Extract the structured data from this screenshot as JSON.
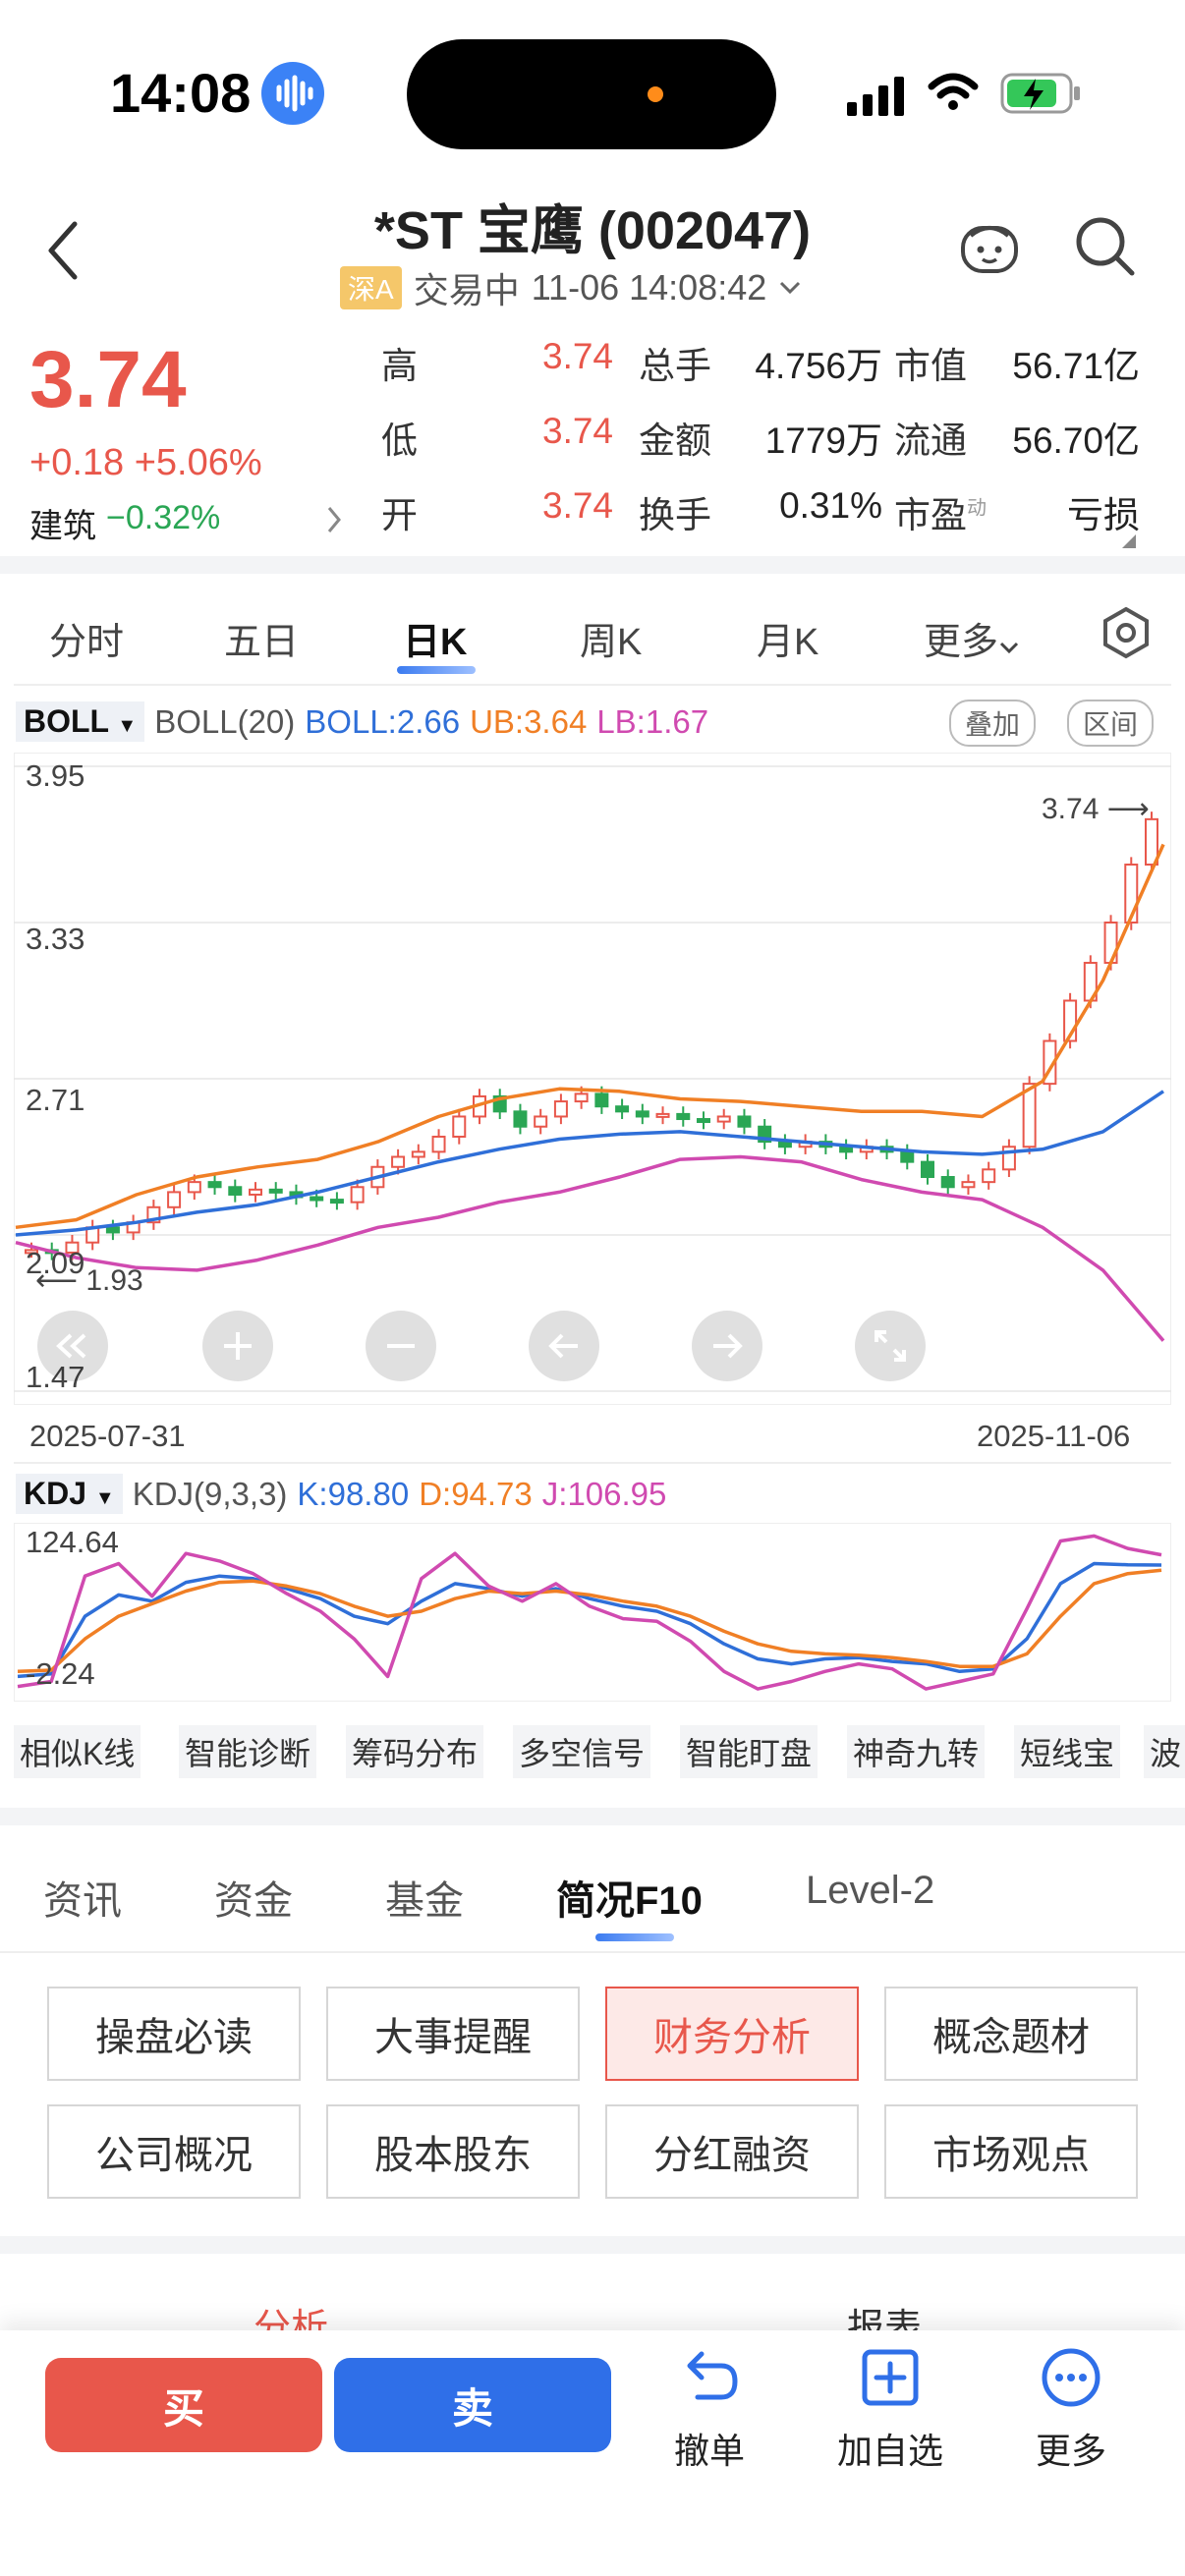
{
  "status_bar": {
    "time": "14:08"
  },
  "header": {
    "title": "*ST 宝鹰 (002047)",
    "market_badge": "深A",
    "trading_status": "交易中",
    "datetime": "11-06 14:08:42"
  },
  "quote": {
    "price": "3.74",
    "change": "+0.18 +5.06%",
    "sector_name": "建筑",
    "sector_change": "−0.32%",
    "rows": [
      {
        "l1": "高",
        "v1": "3.74",
        "l2": "总手",
        "v2": "4.756万",
        "l3": "市值",
        "v3": "56.71亿"
      },
      {
        "l1": "低",
        "v1": "3.74",
        "l2": "金额",
        "v2": "1779万",
        "l3": "流通",
        "v3": "56.70亿"
      },
      {
        "l1": "开",
        "v1": "3.74",
        "l2": "换手",
        "v2": "0.31%",
        "l3": "市盈",
        "l3sup": "动",
        "v3": "亏损"
      }
    ]
  },
  "period_tabs": [
    "分时",
    "五日",
    "日K",
    "周K",
    "月K",
    "更多"
  ],
  "boll": {
    "selector": "BOLL",
    "params": "BOLL(20)",
    "mid": "BOLL:2.66",
    "ub": "UB:3.64",
    "lb": "LB:1.67",
    "btn_overlay": "叠加",
    "btn_range": "区间",
    "y_ticks": [
      "3.95",
      "3.33",
      "2.71",
      "2.09",
      "1.47"
    ],
    "last_price_marker": "3.74",
    "low_marker": "1.93",
    "date_start": "2025-07-31",
    "date_end": "2025-11-06"
  },
  "kdj": {
    "selector": "KDJ",
    "params": "KDJ(9,3,3)",
    "k": "K:98.80",
    "d": "D:94.73",
    "j": "J:106.95",
    "y_top": "124.64",
    "y_bottom": "-2.24"
  },
  "chart_data": {
    "type": "line",
    "title": "",
    "x_range": [
      "2025-07-31",
      "2025-11-06"
    ],
    "ylim": [
      1.47,
      3.95
    ],
    "candles_close": [
      2.03,
      2.02,
      2.06,
      2.12,
      2.1,
      2.14,
      2.2,
      2.26,
      2.3,
      2.28,
      2.25,
      2.27,
      2.26,
      2.24,
      2.23,
      2.22,
      2.28,
      2.36,
      2.4,
      2.42,
      2.48,
      2.56,
      2.64,
      2.58,
      2.52,
      2.56,
      2.62,
      2.65,
      2.6,
      2.58,
      2.56,
      2.57,
      2.55,
      2.54,
      2.56,
      2.52,
      2.46,
      2.44,
      2.46,
      2.44,
      2.42,
      2.44,
      2.42,
      2.38,
      2.32,
      2.28,
      2.3,
      2.35,
      2.44,
      2.69,
      2.86,
      3.02,
      3.17,
      3.33,
      3.56,
      3.74
    ],
    "series": [
      {
        "name": "BOLL",
        "values": [
          2.09,
          2.11,
          2.14,
          2.18,
          2.21,
          2.26,
          2.32,
          2.38,
          2.43,
          2.47,
          2.49,
          2.5,
          2.48,
          2.46,
          2.44,
          2.42,
          2.41,
          2.43,
          2.5,
          2.66
        ]
      },
      {
        "name": "UB",
        "values": [
          2.12,
          2.15,
          2.25,
          2.32,
          2.36,
          2.39,
          2.46,
          2.56,
          2.63,
          2.67,
          2.66,
          2.63,
          2.62,
          2.6,
          2.58,
          2.58,
          2.56,
          2.7,
          3.1,
          3.64
        ]
      },
      {
        "name": "LB",
        "values": [
          2.06,
          2.0,
          1.96,
          1.95,
          1.99,
          2.05,
          2.12,
          2.16,
          2.22,
          2.26,
          2.32,
          2.39,
          2.4,
          2.38,
          2.31,
          2.26,
          2.23,
          2.12,
          1.95,
          1.67
        ]
      }
    ]
  },
  "kdj_chart_data": {
    "type": "line",
    "ylim": [
      -2.24,
      124.64
    ],
    "series": [
      {
        "name": "K",
        "values": [
          10,
          12,
          58,
          75,
          70,
          85,
          90,
          88,
          80,
          72,
          58,
          52,
          70,
          84,
          80,
          74,
          80,
          72,
          66,
          62,
          52,
          36,
          24,
          20,
          24,
          25,
          22,
          20,
          14,
          16,
          40,
          84,
          100,
          99,
          98.8
        ]
      },
      {
        "name": "D",
        "values": [
          14,
          15,
          40,
          58,
          68,
          78,
          85,
          86,
          82,
          76,
          66,
          58,
          62,
          72,
          78,
          76,
          78,
          75,
          70,
          66,
          58,
          46,
          36,
          30,
          28,
          27,
          25,
          22,
          18,
          18,
          28,
          58,
          84,
          92,
          94.73
        ]
      },
      {
        "name": "J",
        "values": [
          2,
          6,
          90,
          100,
          74,
          108,
          102,
          92,
          76,
          62,
          40,
          10,
          88,
          108,
          82,
          70,
          84,
          66,
          56,
          54,
          38,
          14,
          0,
          6,
          14,
          20,
          16,
          0,
          6,
          12,
          64,
          118,
          122,
          112,
          106.95
        ]
      }
    ]
  },
  "tool_chips": [
    "相似K线",
    "智能诊断",
    "筹码分布",
    "多空信号",
    "智能盯盘",
    "神奇九转",
    "短线宝",
    "波"
  ],
  "section_tabs": [
    "资讯",
    "资金",
    "基金",
    "简况F10",
    "Level-2"
  ],
  "f10_buttons": [
    "操盘必读",
    "大事提醒",
    "财务分析",
    "概念题材",
    "公司概况",
    "股本股东",
    "分红融资",
    "市场观点"
  ],
  "sub_tabs": [
    "分析",
    "报表"
  ],
  "bottom_bar": {
    "buy": "买",
    "sell": "卖",
    "cancel": "撤单",
    "add_watch": "加自选",
    "more": "更多"
  },
  "colors": {
    "up": "#e8574b",
    "down": "#2aa654",
    "boll_mid": "#2f6fd8",
    "boll_ub": "#f07f25",
    "boll_lb": "#d04ab0"
  }
}
